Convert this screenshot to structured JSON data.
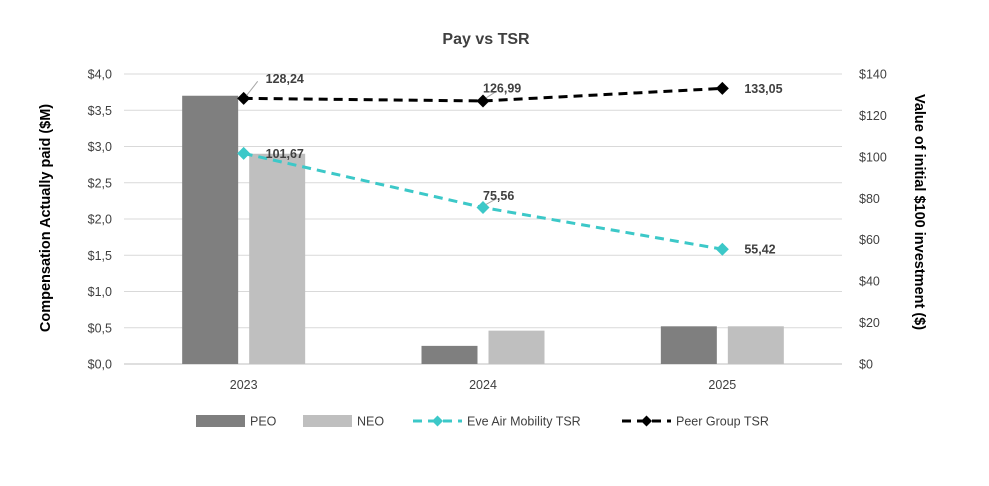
{
  "chart_data": {
    "type": "bar",
    "title": "Pay vs TSR",
    "categories": [
      "2023",
      "2024",
      "2025"
    ],
    "ylabel": "Compensation Actually paid ($M)",
    "y2label": "Value of initial $100 investment ($)",
    "ylim": [
      0,
      4
    ],
    "y2lim": [
      0,
      140
    ],
    "yticks": [
      "$0,0",
      "$0,5",
      "$1,0",
      "$1,5",
      "$2,0",
      "$2,5",
      "$3,0",
      "$3,5",
      "$4,0"
    ],
    "y2ticks": [
      "$0",
      "$20",
      "$40",
      "$60",
      "$80",
      "$100",
      "$120",
      "$140"
    ],
    "grid": true,
    "legend_position": "bottom",
    "bar_series": [
      {
        "name": "PEO",
        "values": [
          3.7,
          0.25,
          0.52
        ],
        "color": "#7f7f7f"
      },
      {
        "name": "NEO",
        "values": [
          2.9,
          0.46,
          0.52
        ],
        "color": "#bfbfbf"
      }
    ],
    "line_series": [
      {
        "name": "Eve Air Mobility TSR",
        "values": [
          101.67,
          75.56,
          55.42
        ],
        "labels": [
          "101,67",
          "75,56",
          "55,42"
        ],
        "color": "#3cc8c8",
        "marker": "diamond"
      },
      {
        "name": "Peer Group TSR",
        "values": [
          128.24,
          126.99,
          133.05
        ],
        "labels": [
          "128,24",
          "126,99",
          "133,05"
        ],
        "color": "#000000",
        "marker": "diamond"
      }
    ]
  }
}
